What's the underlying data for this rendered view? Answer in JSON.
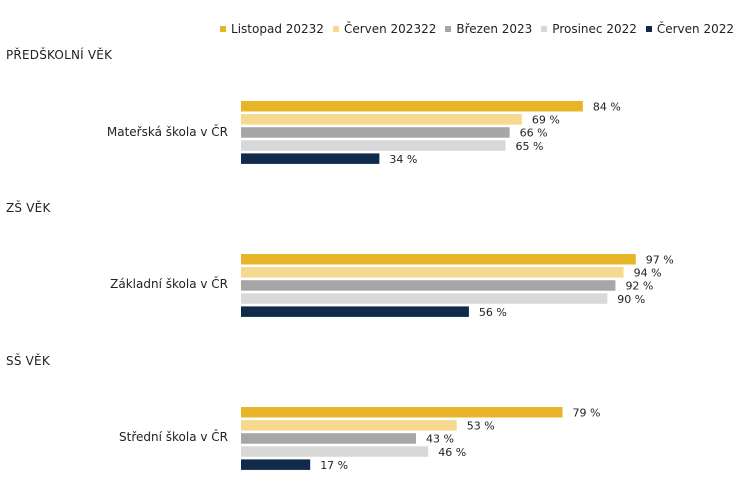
{
  "chart_data": {
    "type": "bar",
    "orientation": "horizontal",
    "xlim": [
      0,
      100
    ],
    "value_suffix": " %",
    "legend_placement": "top-right",
    "grid": false,
    "series": [
      {
        "name": "Listopad 20232",
        "color": "#e8b428"
      },
      {
        "name": "Červen 202322",
        "color": "#f5d98e"
      },
      {
        "name": "Březen 2023",
        "color": "#a6a6a6"
      },
      {
        "name": "Prosinec 2022",
        "color": "#d8d8d8"
      },
      {
        "name": "Červen 2022",
        "color": "#0f2a4a"
      }
    ],
    "groups": [
      {
        "title": "PŘEDŠKOLNÍ VĚK",
        "category": "Mateřská škola v ČR",
        "values": [
          84,
          69,
          66,
          65,
          34
        ]
      },
      {
        "title": "ZŠ VĚK",
        "category": "Základní škola v ČR",
        "values": [
          97,
          94,
          92,
          90,
          56
        ]
      },
      {
        "title": "SŠ VĚK",
        "category": "Střední škola v ČR",
        "values": [
          79,
          53,
          43,
          46,
          17
        ]
      }
    ]
  }
}
